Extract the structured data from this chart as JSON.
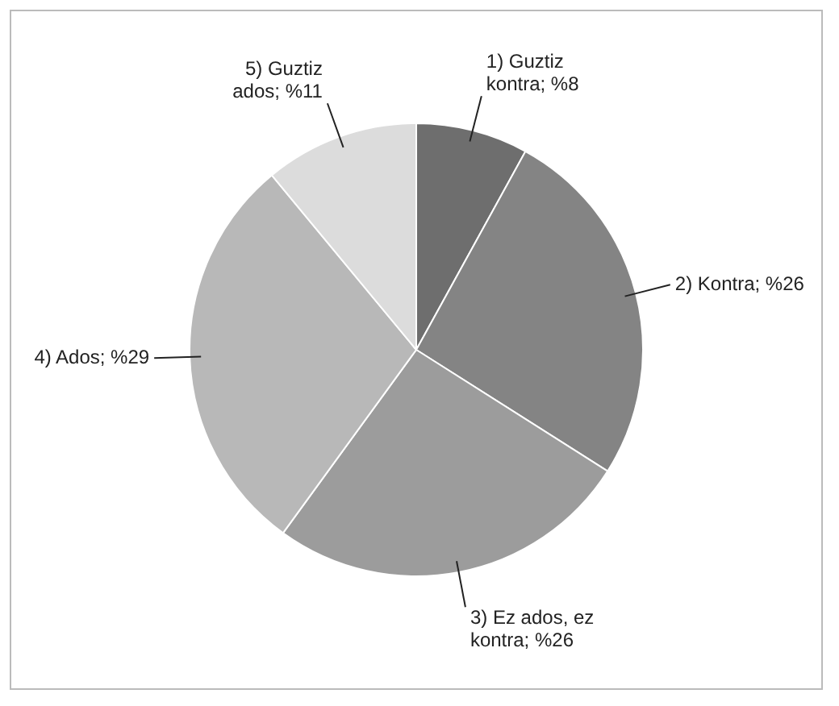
{
  "chart_data": {
    "type": "pie",
    "categories": [
      "1) Guztiz kontra",
      "2) Kontra",
      "3) Ez ados, ez kontra",
      "4) Ados",
      "5) Guztiz ados"
    ],
    "values": [
      8,
      26,
      26,
      29,
      11
    ],
    "value_labels": [
      "%8",
      "%26",
      "%26",
      "%29",
      "%11"
    ],
    "colors": [
      "#6e6e6e",
      "#848484",
      "#9c9c9c",
      "#b8b8b8",
      "#dcdcdc"
    ],
    "legend": false
  }
}
